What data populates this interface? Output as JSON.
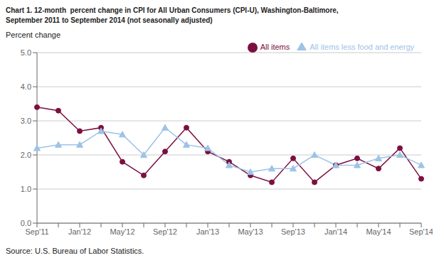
{
  "chart_data": {
    "type": "line",
    "title": "Chart 1. 12-month  percent change in CPI for All Urban Consumers (CPI-U), Washington-Baltimore,",
    "subtitle": "September 2011 to September 2014 (not seasonally adjusted)",
    "y_label": "Percent change",
    "annotations": [
      "Source: U.S. Bureau of Labor Statistics."
    ],
    "categories": [
      "Sep'11",
      null,
      "Jan'12",
      null,
      "May'12",
      null,
      "Sep'12",
      null,
      "Jan'13",
      null,
      "May'13",
      null,
      "Sep'13",
      null,
      "Jan'14",
      null,
      "May'14",
      null,
      "Sep'14"
    ],
    "series": [
      {
        "name": "All items",
        "color": "#7B1040",
        "marker": "circle",
        "values": [
          3.4,
          3.3,
          2.7,
          2.8,
          1.8,
          1.4,
          2.1,
          2.8,
          2.1,
          1.8,
          1.4,
          1.2,
          1.9,
          1.2,
          1.7,
          1.9,
          1.6,
          2.2,
          1.3
        ]
      },
      {
        "name": "All items less food and energy",
        "color": "#9DC3E6",
        "marker": "triangle",
        "values": [
          2.2,
          2.3,
          2.3,
          2.7,
          2.6,
          2.0,
          2.8,
          2.3,
          2.2,
          1.7,
          1.5,
          1.6,
          1.6,
          2.0,
          1.7,
          1.7,
          1.9,
          2.0,
          1.7
        ]
      }
    ],
    "ylim": [
      0.0,
      5.0
    ],
    "yticks": [
      {
        "value": 0,
        "label": "0.0"
      },
      {
        "value": 1,
        "label": "1.0"
      },
      {
        "value": 2,
        "label": "2.0"
      },
      {
        "value": 3,
        "label": "3.0"
      },
      {
        "value": 4,
        "label": "4.0"
      },
      {
        "value": 5,
        "label": "5.0"
      }
    ],
    "grid": "y",
    "legend": "upper right"
  }
}
